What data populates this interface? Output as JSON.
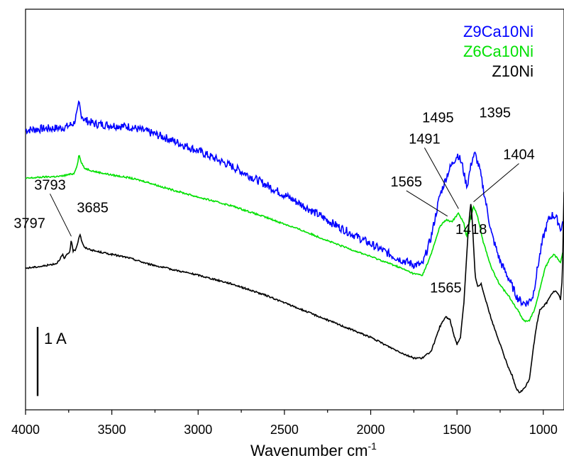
{
  "chart_data": {
    "type": "line",
    "title": "",
    "xlabel": "Wavenumber cm",
    "xlabel_superscript": "-1",
    "ylabel": "",
    "xlim": [
      4000,
      880
    ],
    "x_reversed": true,
    "x_ticks": [
      4000,
      3500,
      3000,
      2500,
      2000,
      1500,
      1000
    ],
    "y_units": "arbitrary (absorbance, offset traces)",
    "ylim": [
      0,
      5.8
    ],
    "scale_bar": {
      "label": "1 A",
      "length": 1.0,
      "at_x": 3930,
      "from_y": 0.2
    },
    "legend": {
      "placement": "top-right",
      "entries": [
        {
          "name": "Z9Ca10Ni",
          "color": "#0000ff"
        },
        {
          "name": "Z6Ca10Ni",
          "color": "#00e000"
        },
        {
          "name": "Z10Ni",
          "color": "#000000"
        }
      ]
    },
    "series": [
      {
        "name": "Z9Ca10Ni",
        "color": "#0000ff",
        "noise": 0.06,
        "points": [
          [
            4000,
            4.05
          ],
          [
            3900,
            4.07
          ],
          [
            3800,
            4.08
          ],
          [
            3760,
            4.1
          ],
          [
            3720,
            4.15
          ],
          [
            3700,
            4.3
          ],
          [
            3690,
            4.45
          ],
          [
            3680,
            4.3
          ],
          [
            3660,
            4.2
          ],
          [
            3600,
            4.14
          ],
          [
            3500,
            4.12
          ],
          [
            3400,
            4.1
          ],
          [
            3300,
            4.03
          ],
          [
            3200,
            3.95
          ],
          [
            3000,
            3.75
          ],
          [
            2800,
            3.52
          ],
          [
            2600,
            3.25
          ],
          [
            2400,
            2.97
          ],
          [
            2200,
            2.67
          ],
          [
            2000,
            2.4
          ],
          [
            1850,
            2.2
          ],
          [
            1750,
            2.1
          ],
          [
            1700,
            2.1
          ],
          [
            1650,
            2.5
          ],
          [
            1600,
            3.1
          ],
          [
            1550,
            3.45
          ],
          [
            1520,
            3.6
          ],
          [
            1495,
            3.7
          ],
          [
            1470,
            3.55
          ],
          [
            1450,
            3.3
          ],
          [
            1440,
            3.25
          ],
          [
            1430,
            3.4
          ],
          [
            1410,
            3.65
          ],
          [
            1395,
            3.7
          ],
          [
            1370,
            3.5
          ],
          [
            1340,
            3.1
          ],
          [
            1300,
            2.55
          ],
          [
            1250,
            2.15
          ],
          [
            1200,
            1.9
          ],
          [
            1150,
            1.62
          ],
          [
            1120,
            1.55
          ],
          [
            1090,
            1.55
          ],
          [
            1060,
            1.65
          ],
          [
            1030,
            2.1
          ],
          [
            1000,
            2.5
          ],
          [
            970,
            2.75
          ],
          [
            950,
            2.82
          ],
          [
            930,
            2.8
          ],
          [
            910,
            2.7
          ],
          [
            895,
            2.6
          ],
          [
            885,
            2.78
          ]
        ]
      },
      {
        "name": "Z6Ca10Ni",
        "color": "#00e000",
        "noise": 0.012,
        "points": [
          [
            4000,
            3.35
          ],
          [
            3900,
            3.37
          ],
          [
            3800,
            3.38
          ],
          [
            3720,
            3.42
          ],
          [
            3700,
            3.55
          ],
          [
            3690,
            3.7
          ],
          [
            3680,
            3.6
          ],
          [
            3660,
            3.5
          ],
          [
            3600,
            3.45
          ],
          [
            3500,
            3.4
          ],
          [
            3400,
            3.36
          ],
          [
            3300,
            3.3
          ],
          [
            3200,
            3.22
          ],
          [
            3000,
            3.08
          ],
          [
            2800,
            2.95
          ],
          [
            2600,
            2.78
          ],
          [
            2400,
            2.6
          ],
          [
            2200,
            2.4
          ],
          [
            2000,
            2.22
          ],
          [
            1850,
            2.08
          ],
          [
            1750,
            1.97
          ],
          [
            1700,
            1.95
          ],
          [
            1650,
            2.25
          ],
          [
            1600,
            2.65
          ],
          [
            1565,
            2.75
          ],
          [
            1530,
            2.72
          ],
          [
            1491,
            2.85
          ],
          [
            1460,
            2.7
          ],
          [
            1445,
            2.5
          ],
          [
            1425,
            2.75
          ],
          [
            1404,
            2.95
          ],
          [
            1380,
            2.8
          ],
          [
            1350,
            2.45
          ],
          [
            1300,
            2.05
          ],
          [
            1250,
            1.8
          ],
          [
            1200,
            1.65
          ],
          [
            1150,
            1.45
          ],
          [
            1110,
            1.28
          ],
          [
            1080,
            1.3
          ],
          [
            1050,
            1.45
          ],
          [
            1020,
            1.75
          ],
          [
            990,
            2.05
          ],
          [
            960,
            2.2
          ],
          [
            940,
            2.25
          ],
          [
            920,
            2.2
          ],
          [
            900,
            2.13
          ],
          [
            885,
            2.32
          ]
        ]
      },
      {
        "name": "Z10Ni",
        "color": "#000000",
        "noise": 0.012,
        "points": [
          [
            4000,
            2.05
          ],
          [
            3900,
            2.08
          ],
          [
            3820,
            2.12
          ],
          [
            3797,
            2.2
          ],
          [
            3785,
            2.25
          ],
          [
            3775,
            2.18
          ],
          [
            3760,
            2.25
          ],
          [
            3745,
            2.28
          ],
          [
            3735,
            2.45
          ],
          [
            3725,
            2.3
          ],
          [
            3710,
            2.32
          ],
          [
            3700,
            2.4
          ],
          [
            3690,
            2.5
          ],
          [
            3685,
            2.55
          ],
          [
            3675,
            2.45
          ],
          [
            3660,
            2.35
          ],
          [
            3600,
            2.3
          ],
          [
            3500,
            2.25
          ],
          [
            3400,
            2.2
          ],
          [
            3300,
            2.12
          ],
          [
            3200,
            2.06
          ],
          [
            3000,
            1.95
          ],
          [
            2800,
            1.82
          ],
          [
            2600,
            1.65
          ],
          [
            2400,
            1.45
          ],
          [
            2200,
            1.25
          ],
          [
            2000,
            1.05
          ],
          [
            1900,
            0.92
          ],
          [
            1800,
            0.8
          ],
          [
            1750,
            0.75
          ],
          [
            1700,
            0.75
          ],
          [
            1650,
            0.85
          ],
          [
            1620,
            1.05
          ],
          [
            1600,
            1.2
          ],
          [
            1565,
            1.35
          ],
          [
            1540,
            1.3
          ],
          [
            1520,
            1.1
          ],
          [
            1500,
            0.95
          ],
          [
            1480,
            1.05
          ],
          [
            1460,
            1.55
          ],
          [
            1440,
            2.4
          ],
          [
            1425,
            2.9
          ],
          [
            1418,
            3.0
          ],
          [
            1410,
            2.65
          ],
          [
            1395,
            1.95
          ],
          [
            1380,
            1.78
          ],
          [
            1360,
            1.82
          ],
          [
            1340,
            1.65
          ],
          [
            1300,
            1.3
          ],
          [
            1250,
            0.95
          ],
          [
            1230,
            0.8
          ],
          [
            1215,
            0.7
          ],
          [
            1200,
            0.6
          ],
          [
            1180,
            0.5
          ],
          [
            1160,
            0.32
          ],
          [
            1140,
            0.25
          ],
          [
            1120,
            0.28
          ],
          [
            1100,
            0.35
          ],
          [
            1080,
            0.45
          ],
          [
            1060,
            0.85
          ],
          [
            1040,
            1.2
          ],
          [
            1020,
            1.45
          ],
          [
            1000,
            1.5
          ],
          [
            980,
            1.55
          ],
          [
            960,
            1.65
          ],
          [
            945,
            1.7
          ],
          [
            930,
            1.72
          ],
          [
            915,
            1.68
          ],
          [
            900,
            1.6
          ],
          [
            890,
            1.9
          ],
          [
            880,
            3.15
          ]
        ]
      }
    ],
    "annotations": [
      {
        "text": "3797",
        "x": 3797,
        "series": "Z10Ni"
      },
      {
        "text": "3793",
        "x": 3735,
        "series": "Z10Ni"
      },
      {
        "text": "3685",
        "x": 3685,
        "series": "Z10Ni"
      },
      {
        "text": "1565",
        "x": 1565,
        "series": "Z10Ni"
      },
      {
        "text": "1418",
        "x": 1418,
        "series": "Z10Ni"
      },
      {
        "text": "1565",
        "x": 1555,
        "series": "Z6Ca10Ni"
      },
      {
        "text": "1491",
        "x": 1491,
        "series": "Z6Ca10Ni"
      },
      {
        "text": "1404",
        "x": 1404,
        "series": "Z6Ca10Ni"
      },
      {
        "text": "1495",
        "x": 1495,
        "series": "Z9Ca10Ni"
      },
      {
        "text": "1395",
        "x": 1395,
        "series": "Z9Ca10Ni"
      }
    ]
  }
}
